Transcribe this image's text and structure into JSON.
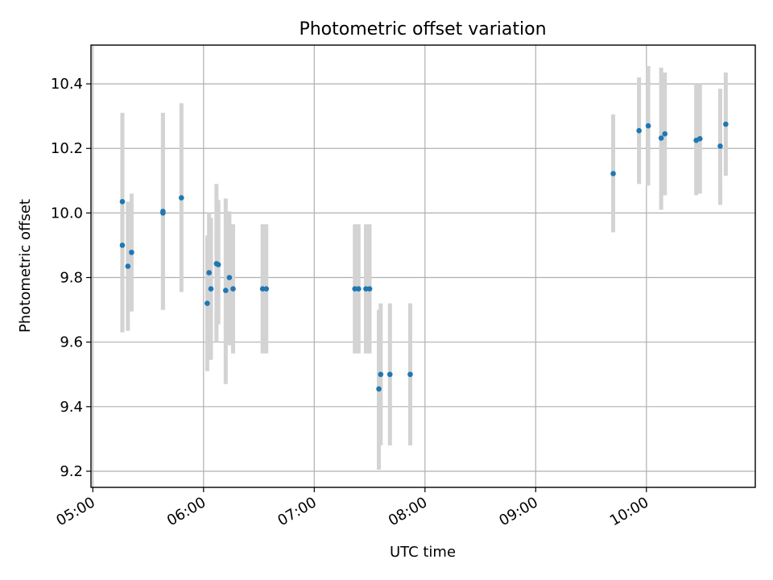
{
  "chart_data": {
    "type": "scatter",
    "title": "Photometric offset variation",
    "xlabel": "UTC time",
    "ylabel": "Photometric offset",
    "x_unit": "UTC time (HH:MM)",
    "xlim": [
      "04:59",
      "10:59"
    ],
    "ylim": [
      9.15,
      10.52
    ],
    "x_ticks": [
      "05:00",
      "06:00",
      "07:00",
      "08:00",
      "09:00",
      "10:00"
    ],
    "y_ticks": [
      "9.2",
      "9.4",
      "9.6",
      "9.8",
      "10.0",
      "10.2",
      "10.4"
    ],
    "grid": true,
    "marker_color": "#1f77b4",
    "errorbar_color": "#d3d3d3",
    "points": [
      {
        "x": "05:16",
        "y": 9.9,
        "ylo": 9.63,
        "yhi": 10.18
      },
      {
        "x": "05:16",
        "y": 10.035,
        "ylo": 9.76,
        "yhi": 10.31
      },
      {
        "x": "05:19",
        "y": 9.835,
        "ylo": 9.635,
        "yhi": 10.035
      },
      {
        "x": "05:21",
        "y": 9.878,
        "ylo": 9.695,
        "yhi": 10.06
      },
      {
        "x": "05:38",
        "y": 10.0,
        "ylo": 9.7,
        "yhi": 10.31
      },
      {
        "x": "05:38",
        "y": 10.005,
        "ylo": 9.7,
        "yhi": 10.31
      },
      {
        "x": "05:48",
        "y": 10.047,
        "ylo": 9.755,
        "yhi": 10.34
      },
      {
        "x": "06:02",
        "y": 9.72,
        "ylo": 9.51,
        "yhi": 9.93
      },
      {
        "x": "06:03",
        "y": 9.815,
        "ylo": 9.63,
        "yhi": 10.0
      },
      {
        "x": "06:04",
        "y": 9.765,
        "ylo": 9.545,
        "yhi": 9.985
      },
      {
        "x": "06:07",
        "y": 9.843,
        "ylo": 9.6,
        "yhi": 10.09
      },
      {
        "x": "06:08",
        "y": 9.84,
        "ylo": 9.655,
        "yhi": 10.04
      },
      {
        "x": "06:12",
        "y": 9.76,
        "ylo": 9.47,
        "yhi": 10.045
      },
      {
        "x": "06:14",
        "y": 9.8,
        "ylo": 9.59,
        "yhi": 10.005
      },
      {
        "x": "06:16",
        "y": 9.765,
        "ylo": 9.565,
        "yhi": 9.965
      },
      {
        "x": "06:32",
        "y": 9.765,
        "ylo": 9.565,
        "yhi": 9.965
      },
      {
        "x": "06:34",
        "y": 9.765,
        "ylo": 9.565,
        "yhi": 9.965
      },
      {
        "x": "07:22",
        "y": 9.765,
        "ylo": 9.565,
        "yhi": 9.965
      },
      {
        "x": "07:24",
        "y": 9.765,
        "ylo": 9.565,
        "yhi": 9.965
      },
      {
        "x": "07:28",
        "y": 9.765,
        "ylo": 9.565,
        "yhi": 9.965
      },
      {
        "x": "07:30",
        "y": 9.765,
        "ylo": 9.565,
        "yhi": 9.965
      },
      {
        "x": "07:35",
        "y": 9.455,
        "ylo": 9.205,
        "yhi": 9.7
      },
      {
        "x": "07:36",
        "y": 9.5,
        "ylo": 9.28,
        "yhi": 9.72
      },
      {
        "x": "07:41",
        "y": 9.5,
        "ylo": 9.28,
        "yhi": 9.72
      },
      {
        "x": "07:52",
        "y": 9.5,
        "ylo": 9.28,
        "yhi": 9.72
      },
      {
        "x": "09:42",
        "y": 10.122,
        "ylo": 9.94,
        "yhi": 10.305
      },
      {
        "x": "09:56",
        "y": 10.255,
        "ylo": 10.09,
        "yhi": 10.42
      },
      {
        "x": "10:01",
        "y": 10.27,
        "ylo": 10.085,
        "yhi": 10.455
      },
      {
        "x": "10:08",
        "y": 10.232,
        "ylo": 10.01,
        "yhi": 10.45
      },
      {
        "x": "10:10",
        "y": 10.245,
        "ylo": 10.055,
        "yhi": 10.435
      },
      {
        "x": "10:27",
        "y": 10.225,
        "ylo": 10.055,
        "yhi": 10.4
      },
      {
        "x": "10:29",
        "y": 10.23,
        "ylo": 10.06,
        "yhi": 10.4
      },
      {
        "x": "10:40",
        "y": 10.207,
        "ylo": 10.025,
        "yhi": 10.385
      },
      {
        "x": "10:43",
        "y": 10.275,
        "ylo": 10.115,
        "yhi": 10.435
      }
    ]
  }
}
